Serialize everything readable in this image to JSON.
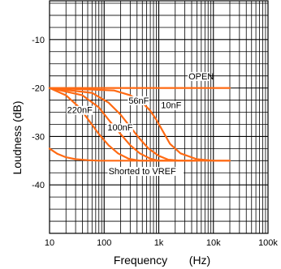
{
  "chart_data": {
    "type": "line",
    "xlabel": "Frequency",
    "xlabel_unit": "(Hz)",
    "ylabel": "Loudness (dB)",
    "x_scale": "log",
    "xlim": [
      10,
      100000
    ],
    "ylim": [
      -50,
      -2
    ],
    "grid": true,
    "x_tick_values": [
      10,
      100,
      1000,
      10000,
      100000
    ],
    "x_tick_labels": [
      "10",
      "100",
      "1k",
      "10k",
      "100k"
    ],
    "y_tick_values": [
      -10,
      -20,
      -30,
      -40
    ],
    "y_tick_labels": [
      "-10",
      "-20",
      "-30",
      "-40"
    ],
    "line_color": "#ff6a13",
    "series": [
      {
        "name": "OPEN",
        "x": [
          10,
          300,
          1000,
          10000,
          20000
        ],
        "y": [
          -20,
          -20,
          -20,
          -20,
          -20
        ]
      },
      {
        "name": "10nF",
        "x": [
          10,
          150,
          300,
          500,
          700,
          900,
          1200,
          1600,
          2500,
          5000,
          10000,
          20000
        ],
        "y": [
          -20,
          -20.5,
          -21.5,
          -23,
          -24.7,
          -26.5,
          -29,
          -31.5,
          -33.5,
          -34.7,
          -35,
          -35
        ]
      },
      {
        "name": "56nF",
        "x": [
          10,
          60,
          120,
          200,
          300,
          450,
          650,
          1000,
          1500,
          2500,
          5000,
          20000
        ],
        "y": [
          -20,
          -21,
          -23,
          -25.5,
          -28,
          -30.5,
          -32.5,
          -34,
          -34.8,
          -35,
          -35,
          -35
        ]
      },
      {
        "name": "100nF",
        "x": [
          10,
          40,
          80,
          130,
          200,
          300,
          450,
          700,
          1000,
          2000,
          5000
        ],
        "y": [
          -20,
          -21.5,
          -24,
          -27,
          -29.5,
          -31.8,
          -33.5,
          -34.6,
          -35,
          -35,
          -35
        ]
      },
      {
        "name": "220nF",
        "x": [
          10,
          20,
          35,
          55,
          80,
          120,
          180,
          280,
          450,
          800,
          1500,
          5000
        ],
        "y": [
          -20,
          -21.5,
          -24,
          -27,
          -29.5,
          -31.8,
          -33.5,
          -34.6,
          -35,
          -35,
          -35,
          -35
        ]
      },
      {
        "name": "Shorted to VREF",
        "x": [
          10,
          14,
          20,
          30,
          50,
          80,
          150,
          300,
          1000,
          3000
        ],
        "y": [
          -32.5,
          -33.6,
          -34.3,
          -34.7,
          -34.9,
          -35,
          -35,
          -35,
          -35,
          -35
        ]
      }
    ],
    "annotations": [
      {
        "text": "OPEN",
        "x": 3500,
        "y": -18.2
      },
      {
        "text": "56nF",
        "x": 280,
        "y": -23.2
      },
      {
        "text": "10nF",
        "x": 1100,
        "y": -24.2
      },
      {
        "text": "220nF",
        "x": 21,
        "y": -25.2
      },
      {
        "text": "100nF",
        "x": 115,
        "y": -28.8
      },
      {
        "text": "Shorted to VREF",
        "x": 120,
        "y": -37.8
      }
    ]
  }
}
